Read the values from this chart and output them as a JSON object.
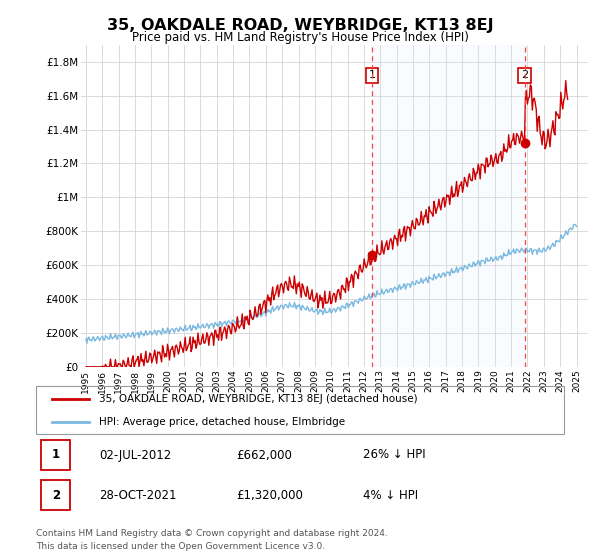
{
  "title": "35, OAKDALE ROAD, WEYBRIDGE, KT13 8EJ",
  "subtitle": "Price paid vs. HM Land Registry's House Price Index (HPI)",
  "ylabel_ticks": [
    "£0",
    "£200K",
    "£400K",
    "£600K",
    "£800K",
    "£1M",
    "£1.2M",
    "£1.4M",
    "£1.6M",
    "£1.8M"
  ],
  "ytick_values": [
    0,
    200000,
    400000,
    600000,
    800000,
    1000000,
    1200000,
    1400000,
    1600000,
    1800000
  ],
  "ylim": [
    0,
    1900000
  ],
  "xtick_years": [
    1995,
    1996,
    1997,
    1998,
    1999,
    2000,
    2001,
    2002,
    2003,
    2004,
    2005,
    2006,
    2007,
    2008,
    2009,
    2010,
    2011,
    2012,
    2013,
    2014,
    2015,
    2016,
    2017,
    2018,
    2019,
    2020,
    2021,
    2022,
    2023,
    2024,
    2025
  ],
  "hpi_color": "#7ab8e0",
  "hpi_fill_color": "#ddeeff",
  "price_color": "#cc0000",
  "dot_color": "#cc0000",
  "vline_color": "#ff4444",
  "legend_box_color": "#cc0000",
  "sale1_x": 2012.5,
  "sale1_y": 662000,
  "sale2_x": 2021.83,
  "sale2_y": 1320000,
  "legend_line1": "35, OAKDALE ROAD, WEYBRIDGE, KT13 8EJ (detached house)",
  "legend_line2": "HPI: Average price, detached house, Elmbridge",
  "footer1": "Contains HM Land Registry data © Crown copyright and database right 2024.",
  "footer2": "This data is licensed under the Open Government Licence v3.0.",
  "table_row1": [
    "1",
    "02-JUL-2012",
    "£662,000",
    "26% ↓ HPI"
  ],
  "table_row2": [
    "2",
    "28-OCT-2021",
    "£1,320,000",
    "4% ↓ HPI"
  ]
}
